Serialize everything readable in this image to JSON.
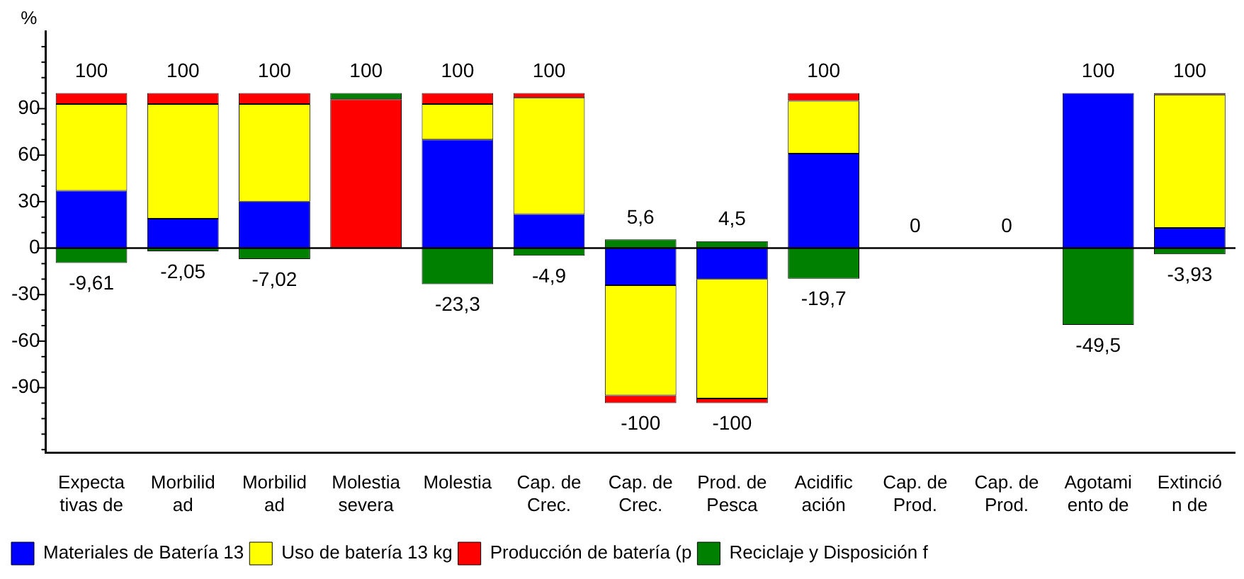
{
  "chart_data": {
    "type": "bar",
    "stacked": true,
    "ylabel": "%",
    "categories": [
      "Expecta\ntivas de",
      "Morbilid\nad",
      "Morbilid\nad",
      "Molestia\nsevera",
      "Molestia",
      "Cap. de\nCrec.",
      "Cap. de\nCrec.",
      "Prod. de\nPesca",
      "Acidific\nación",
      "Cap. de\nProd.",
      "Cap. de\nProd.",
      "Agotami\nento de",
      "Extinció\nn de"
    ],
    "series": [
      {
        "name": "Materiales de Batería 13",
        "color": "#0000ff",
        "values": [
          37,
          19,
          30,
          0,
          70,
          22,
          -24,
          -20,
          61,
          0,
          0,
          100,
          13
        ]
      },
      {
        "name": "Uso de batería 13 kg",
        "color": "#ffff00",
        "values": [
          56,
          74,
          63,
          0,
          23,
          75,
          -71,
          -77,
          34,
          0,
          0,
          0,
          86
        ]
      },
      {
        "name": "Producción de batería (p",
        "color": "#ff0000",
        "values": [
          7,
          7,
          7,
          96,
          7,
          3,
          -5,
          -3,
          5,
          0,
          0,
          0,
          1
        ]
      },
      {
        "name": "Reciclaje y Disposición f",
        "color": "#008000",
        "values": [
          -9.61,
          -2.05,
          -7.02,
          4,
          -23.3,
          -4.9,
          5.6,
          4.5,
          -19.7,
          0,
          0,
          -49.5,
          -3.93
        ]
      }
    ],
    "totals": [
      [
        "100",
        "-9,61"
      ],
      [
        "100",
        "-2,05"
      ],
      [
        "100",
        "-7,02"
      ],
      [
        "100",
        null
      ],
      [
        "100",
        "-23,3"
      ],
      [
        "100",
        "-4,9"
      ],
      [
        "5,6",
        "-100"
      ],
      [
        "4,5",
        "-100"
      ],
      [
        "100",
        "-19,7"
      ],
      [
        "0",
        null
      ],
      [
        "0",
        null
      ],
      [
        "100",
        "-49,5"
      ],
      [
        "100",
        "-3,93"
      ]
    ],
    "ylim": [
      -132,
      140
    ],
    "yticks": [
      {
        "value": -130,
        "label": null
      },
      {
        "value": -120,
        "label": null
      },
      {
        "value": -110,
        "label": null
      },
      {
        "value": -100,
        "label": null
      },
      -90,
      {
        "value": -80,
        "label": null
      },
      {
        "value": -70,
        "label": null
      },
      -60,
      {
        "value": -50,
        "label": null
      },
      {
        "value": -40,
        "label": null
      },
      -30,
      {
        "value": -20,
        "label": null
      },
      {
        "value": -10,
        "label": null
      },
      0,
      {
        "value": 10,
        "label": null
      },
      {
        "value": 20,
        "label": null
      },
      30,
      {
        "value": 40,
        "label": null
      },
      {
        "value": 50,
        "label": null
      },
      60,
      {
        "value": 70,
        "label": null
      },
      {
        "value": 80,
        "label": null
      },
      90,
      {
        "value": 100,
        "label": null
      },
      {
        "value": 110,
        "label": null
      },
      {
        "value": 120,
        "label": null
      },
      {
        "value": 130,
        "label": null
      }
    ],
    "ref_lines": [
      {
        "axis": "y",
        "value": 0,
        "color": "#000000"
      }
    ],
    "grid": false,
    "legend": "bottom left"
  }
}
